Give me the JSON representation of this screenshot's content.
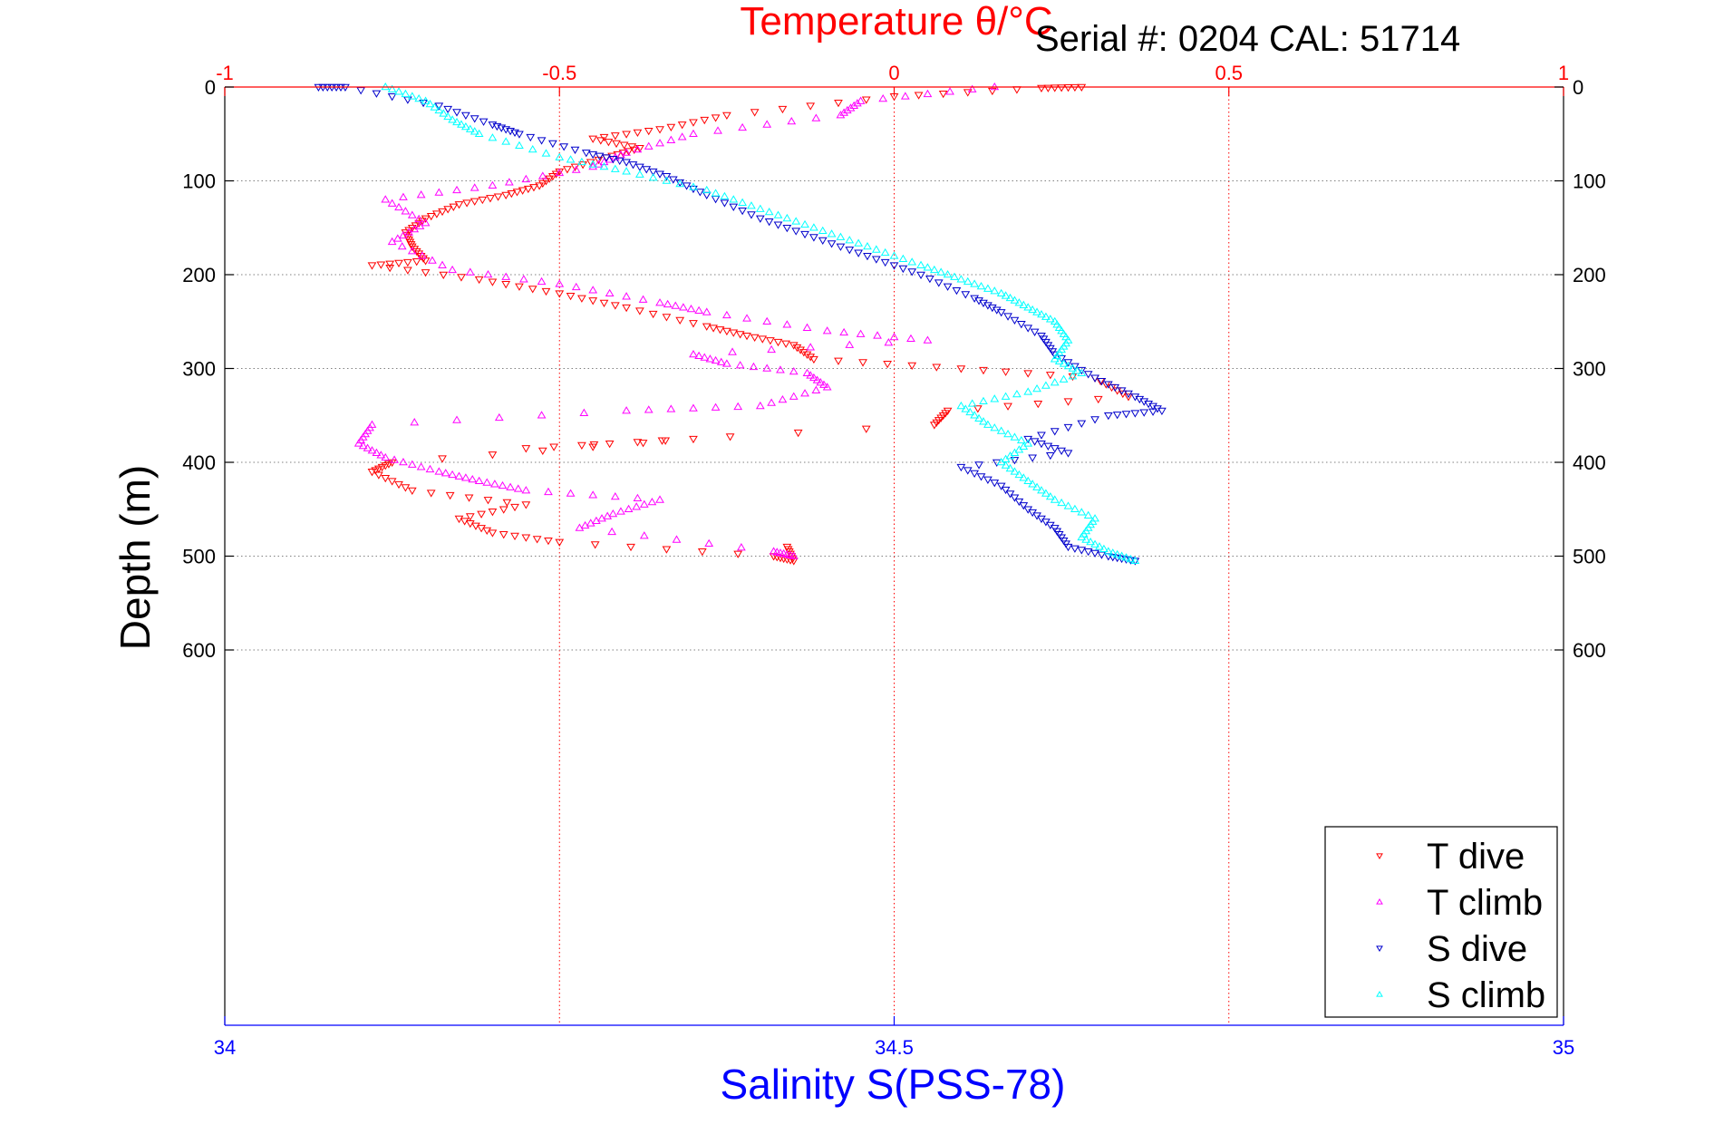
{
  "serial_text": "Serial #: 0204  CAL: 51714",
  "colors": {
    "temperature_axis": "#ff0000",
    "salinity_axis": "#0000ff",
    "t_dive": "#ff0000",
    "t_climb": "#ff00ff",
    "s_dive": "#0000cc",
    "s_climb": "#00ffff",
    "grid": "#808080",
    "frame": "#000000"
  },
  "chart_data": {
    "type": "scatter",
    "title": "Temperature θ/°C",
    "xlabel_top": "Temperature θ/°C",
    "xlabel_bottom": "Salinity S(PSS-78)",
    "ylabel": "Depth (m)",
    "x_top_range": [
      -1,
      1
    ],
    "x_top_ticks": [
      "-1",
      "-0.5",
      "0",
      "0.5",
      "1"
    ],
    "x_bottom_range": [
      34,
      35
    ],
    "x_bottom_ticks": [
      "34",
      "34.5",
      "35"
    ],
    "y_range": [
      0,
      1000
    ],
    "y_reversed": true,
    "y_ticks": [
      "0",
      "100",
      "200",
      "300",
      "400",
      "500",
      "600"
    ],
    "grid": true,
    "legend_position": "bottom-right",
    "legend": [
      "T dive",
      "T climb",
      "S dive",
      "S climb"
    ],
    "series": [
      {
        "name": "T dive",
        "axis": "temperature",
        "marker": "triangle-down",
        "points": [
          [
            0.28,
            0
          ],
          [
            0.22,
            1
          ],
          [
            0.0,
            10
          ],
          [
            -0.25,
            30
          ],
          [
            -0.35,
            45
          ],
          [
            -0.45,
            55
          ],
          [
            -0.38,
            65
          ],
          [
            -0.43,
            75
          ],
          [
            -0.5,
            90
          ],
          [
            -0.53,
            105
          ],
          [
            -0.58,
            115
          ],
          [
            -0.65,
            125
          ],
          [
            -0.7,
            140
          ],
          [
            -0.73,
            155
          ],
          [
            -0.72,
            170
          ],
          [
            -0.7,
            185
          ],
          [
            -0.78,
            190
          ],
          [
            -0.62,
            205
          ],
          [
            -0.5,
            220
          ],
          [
            -0.4,
            235
          ],
          [
            -0.28,
            255
          ],
          [
            -0.22,
            265
          ],
          [
            -0.15,
            275
          ],
          [
            -0.12,
            290
          ],
          [
            0.1,
            300
          ],
          [
            0.3,
            310
          ],
          [
            0.35,
            330
          ],
          [
            0.08,
            345
          ],
          [
            0.06,
            360
          ],
          [
            -0.55,
            385
          ],
          [
            -0.3,
            375
          ],
          [
            -0.75,
            400
          ],
          [
            -0.78,
            410
          ],
          [
            -0.72,
            430
          ],
          [
            -0.55,
            445
          ],
          [
            -0.65,
            460
          ],
          [
            -0.6,
            475
          ],
          [
            -0.5,
            485
          ],
          [
            -0.18,
            500
          ],
          [
            -0.15,
            505
          ],
          [
            -0.16,
            490
          ]
        ]
      },
      {
        "name": "T climb",
        "axis": "temperature",
        "marker": "triangle-up",
        "points": [
          [
            0.15,
            0
          ],
          [
            -0.05,
            15
          ],
          [
            -0.08,
            30
          ],
          [
            -0.3,
            50
          ],
          [
            -0.4,
            70
          ],
          [
            -0.45,
            85
          ],
          [
            -0.6,
            105
          ],
          [
            -0.76,
            120
          ],
          [
            -0.7,
            145
          ],
          [
            -0.75,
            165
          ],
          [
            -0.66,
            195
          ],
          [
            -0.5,
            210
          ],
          [
            -0.35,
            230
          ],
          [
            -0.28,
            240
          ],
          [
            -0.1,
            260
          ],
          [
            0.05,
            270
          ],
          [
            -0.3,
            285
          ],
          [
            -0.25,
            295
          ],
          [
            -0.13,
            305
          ],
          [
            -0.1,
            320
          ],
          [
            -0.2,
            340
          ],
          [
            -0.4,
            345
          ],
          [
            -0.78,
            360
          ],
          [
            -0.8,
            380
          ],
          [
            -0.76,
            395
          ],
          [
            -0.68,
            410
          ],
          [
            -0.62,
            420
          ],
          [
            -0.55,
            430
          ],
          [
            -0.35,
            440
          ],
          [
            -0.42,
            455
          ],
          [
            -0.47,
            470
          ],
          [
            -0.18,
            495
          ],
          [
            -0.15,
            500
          ]
        ]
      },
      {
        "name": "S dive",
        "axis": "salinity",
        "marker": "triangle-down",
        "points": [
          [
            34.07,
            0
          ],
          [
            34.09,
            0
          ],
          [
            34.16,
            20
          ],
          [
            34.2,
            40
          ],
          [
            34.22,
            50
          ],
          [
            34.27,
            70
          ],
          [
            34.3,
            80
          ],
          [
            34.33,
            95
          ],
          [
            34.36,
            115
          ],
          [
            34.4,
            140
          ],
          [
            34.44,
            160
          ],
          [
            34.48,
            180
          ],
          [
            34.52,
            200
          ],
          [
            34.56,
            225
          ],
          [
            34.58,
            240
          ],
          [
            34.61,
            265
          ],
          [
            34.62,
            285
          ],
          [
            34.65,
            310
          ],
          [
            34.68,
            330
          ],
          [
            34.7,
            345
          ],
          [
            34.66,
            350
          ],
          [
            34.6,
            375
          ],
          [
            34.63,
            390
          ],
          [
            34.55,
            405
          ],
          [
            34.58,
            425
          ],
          [
            34.6,
            450
          ],
          [
            34.62,
            470
          ],
          [
            34.63,
            490
          ],
          [
            34.66,
            500
          ],
          [
            34.68,
            505
          ]
        ]
      },
      {
        "name": "S climb",
        "axis": "salinity",
        "marker": "triangle-up",
        "points": [
          [
            34.12,
            0
          ],
          [
            34.15,
            15
          ],
          [
            34.17,
            35
          ],
          [
            34.19,
            50
          ],
          [
            34.25,
            75
          ],
          [
            34.3,
            90
          ],
          [
            34.36,
            110
          ],
          [
            34.4,
            130
          ],
          [
            34.44,
            150
          ],
          [
            34.48,
            170
          ],
          [
            34.52,
            190
          ],
          [
            34.55,
            205
          ],
          [
            34.58,
            220
          ],
          [
            34.6,
            235
          ],
          [
            34.62,
            250
          ],
          [
            34.63,
            270
          ],
          [
            34.62,
            290
          ],
          [
            34.64,
            305
          ],
          [
            34.6,
            325
          ],
          [
            34.55,
            340
          ],
          [
            34.57,
            360
          ],
          [
            34.6,
            380
          ],
          [
            34.58,
            400
          ],
          [
            34.6,
            420
          ],
          [
            34.62,
            440
          ],
          [
            34.65,
            460
          ],
          [
            34.64,
            480
          ],
          [
            34.66,
            495
          ],
          [
            34.68,
            505
          ]
        ]
      }
    ]
  }
}
